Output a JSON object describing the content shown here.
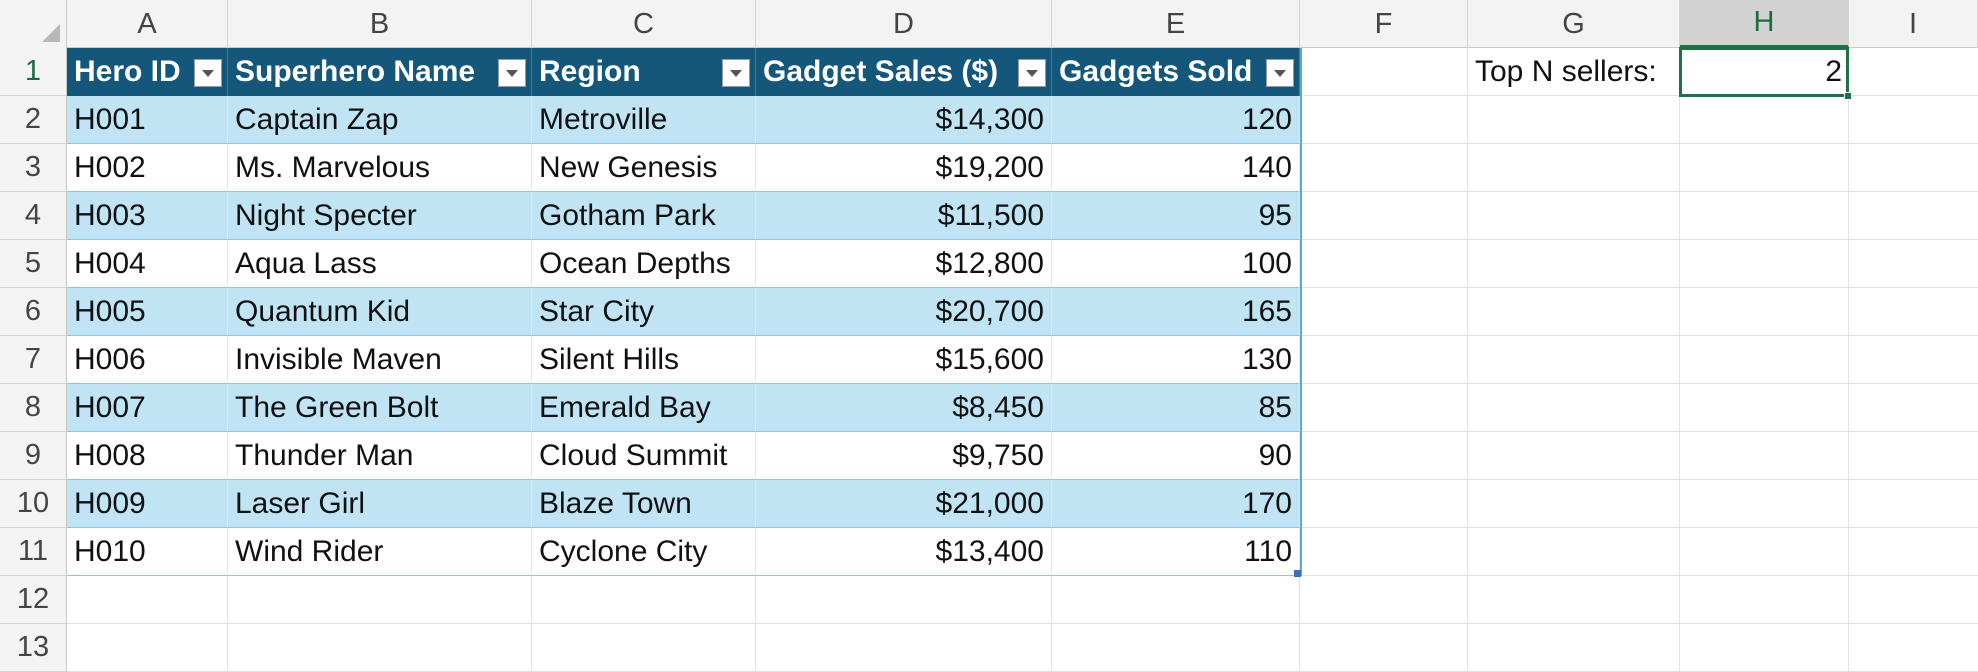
{
  "columns": [
    "A",
    "B",
    "C",
    "D",
    "E",
    "F",
    "G",
    "H",
    "I"
  ],
  "rows": [
    "1",
    "2",
    "3",
    "4",
    "5",
    "6",
    "7",
    "8",
    "9",
    "10",
    "11",
    "12",
    "13"
  ],
  "selected_column": "H",
  "selected_row": "1",
  "table": {
    "headers": [
      "Hero ID",
      "Superhero Name",
      "Region",
      "Gadget Sales ($)",
      "Gadgets Sold"
    ],
    "rows": [
      [
        "H001",
        "Captain Zap",
        "Metroville",
        "$14,300",
        "120"
      ],
      [
        "H002",
        "Ms. Marvelous",
        "New Genesis",
        "$19,200",
        "140"
      ],
      [
        "H003",
        "Night Specter",
        "Gotham Park",
        "$11,500",
        "95"
      ],
      [
        "H004",
        "Aqua Lass",
        "Ocean Depths",
        "$12,800",
        "100"
      ],
      [
        "H005",
        "Quantum Kid",
        "Star City",
        "$20,700",
        "165"
      ],
      [
        "H006",
        "Invisible Maven",
        "Silent Hills",
        "$15,600",
        "130"
      ],
      [
        "H007",
        "The Green Bolt",
        "Emerald Bay",
        "$8,450",
        "85"
      ],
      [
        "H008",
        "Thunder Man",
        "Cloud Summit",
        "$9,750",
        "90"
      ],
      [
        "H009",
        "Laser Girl",
        "Blaze Town",
        "$21,000",
        "170"
      ],
      [
        "H010",
        "Wind Rider",
        "Cyclone City",
        "$13,400",
        "110"
      ]
    ]
  },
  "top_n": {
    "label": "Top N sellers:",
    "value": "2"
  },
  "colors": {
    "header_fill": "#14577a",
    "band_fill": "#c1e4f5",
    "selection": "#1e7145"
  },
  "icons": {
    "filter_dropdown": "chevron-down-icon",
    "select_all": "select-all-triangle-icon"
  }
}
